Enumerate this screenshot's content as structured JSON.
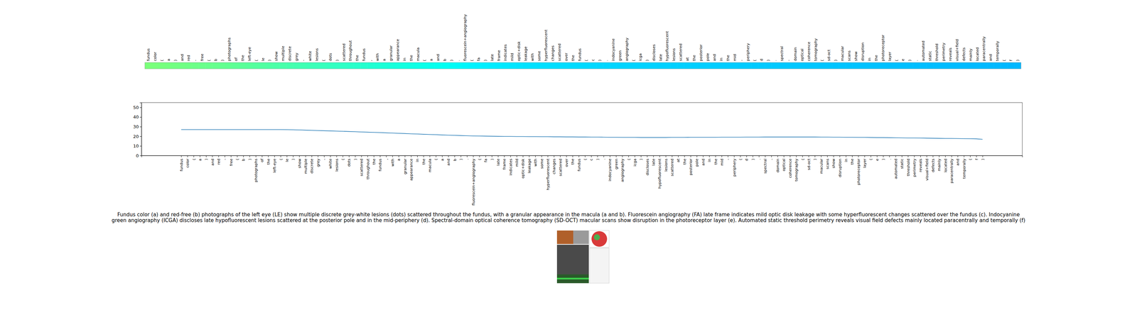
{
  "chart_data": [
    {
      "type": "heatmap",
      "categories": [
        "fundus",
        "color",
        "(",
        "a",
        ")",
        "and",
        "red",
        "-",
        "free",
        "(",
        "b",
        ")",
        "photographs",
        "of",
        "the",
        "left-eye",
        "(",
        "le",
        ")",
        "show",
        "multiple",
        "discrete",
        "grey",
        "-",
        "white",
        "lesions",
        "(",
        "dots",
        ")",
        "scattered",
        "throughout",
        "the",
        "fundus",
        ",",
        "with",
        "a",
        "granular",
        "appearance",
        "in",
        "the",
        "macula",
        "(",
        "a",
        "and",
        "b",
        ")",
        ".",
        "fluorescein+angiography",
        "(",
        "fa",
        ")",
        "late",
        "frame",
        "indicates",
        "mild",
        "optic+disk",
        "leakage",
        "with",
        "some",
        "hyperfluorescent",
        "changes",
        "scattered",
        "over",
        "the",
        "fundus",
        "(",
        "c",
        ")",
        ".",
        "indocyanine",
        "green",
        "angiography",
        "(",
        "icga",
        ")",
        "discloses",
        "late",
        "hypofluorescent",
        "lesions",
        "scattered",
        "at",
        "the",
        "posterior",
        "pole",
        "and",
        "in",
        "the",
        "mid",
        "-",
        "periphery",
        "(",
        "d",
        ")",
        ".",
        "spectral",
        "-",
        "domain",
        "optical",
        "coherence",
        "tomography",
        "(",
        "sd-oct",
        ")",
        "macular",
        "scans",
        "show",
        "disruption",
        "in",
        "the",
        "photoreceptor",
        "layer",
        "(",
        "e",
        ")",
        ".",
        "automated",
        "static",
        "threshold",
        "perimetry",
        "reveals",
        "visual+field",
        "defects",
        "mainly",
        "located",
        "paracentrally",
        "and",
        "temporally",
        "(",
        "f",
        ")"
      ],
      "colors": [
        "#7aff7a",
        "#78ff7c",
        "#76ff7e",
        "#74ff80",
        "#72ff82",
        "#70ff84",
        "#6eff86",
        "#6cff88",
        "#6aff8a",
        "#68ff8c",
        "#66ff8e",
        "#63ff90",
        "#60ff92",
        "#5dff95",
        "#5aff98",
        "#57ff9b",
        "#54ff9e",
        "#51ffa1",
        "#4effa4",
        "#4bffa7",
        "#48ffaa",
        "#45ffad",
        "#42ffb0",
        "#3fffb3",
        "#3cffb6",
        "#39ffb9",
        "#36ffbc",
        "#33ffbf",
        "#30ffc2",
        "#2dffc5",
        "#2affc8",
        "#27ffcb",
        "#24ffce",
        "#21ffd1",
        "#1effd4",
        "#1bffd7",
        "#18ffda",
        "#15ffdd",
        "#12ffe0",
        "#0fffe3",
        "#0cffe6",
        "#09ffe9",
        "#06ffec",
        "#03ffef",
        "#00fff2",
        "#00fcf5",
        "#00f9f8",
        "#00f6fb",
        "#00f3fe",
        "#00f0ff",
        "#00eeff",
        "#00ecff",
        "#00eaff",
        "#00e8ff",
        "#00e6ff",
        "#00e4ff",
        "#00e2ff",
        "#00e1ff",
        "#00e0ff",
        "#00dfff",
        "#00deff",
        "#00ddff",
        "#00dcff",
        "#00dbff",
        "#00daff",
        "#00d9ff",
        "#00d8ff",
        "#00d7ff",
        "#00d6ff",
        "#00d5ff",
        "#00d4ff",
        "#00d4ff",
        "#00d3ff",
        "#00d3ff",
        "#00d2ff",
        "#00d2ff",
        "#00d1ff",
        "#00d1ff",
        "#00d0ff",
        "#00d0ff",
        "#00cfff",
        "#00cfff",
        "#00ceff",
        "#00ceff",
        "#00cdff",
        "#00cdff",
        "#00ccff",
        "#00ccff",
        "#00cbff",
        "#00cbff",
        "#00caff",
        "#00caff",
        "#00c9ff",
        "#00c9ff",
        "#00c8ff",
        "#00c8ff",
        "#00c7ff",
        "#00c7ff",
        "#00c6ff",
        "#00c6ff",
        "#00c5ff",
        "#00c5ff",
        "#00c4ff",
        "#00c4ff",
        "#00c3ff",
        "#00c3ff",
        "#00c2ff",
        "#00c2ff",
        "#00c1ff",
        "#00c1ff",
        "#00c0ff",
        "#00c0ff",
        "#00bfff",
        "#00bfff",
        "#00beff",
        "#00beff",
        "#00bdff",
        "#00bdff",
        "#00bcff",
        "#00bcff",
        "#00bbff",
        "#00bbff",
        "#00baff",
        "#00baff",
        "#00b9ff",
        "#00b9ff",
        "#00b8ff",
        "#00b8ff",
        "#00b7ff",
        "#00b7ff"
      ]
    },
    {
      "type": "line",
      "categories": [
        "fundus",
        "color",
        "(",
        "a",
        ")",
        "and",
        "red",
        "-",
        "free",
        "(",
        "b",
        ")",
        "photographs",
        "of",
        "the",
        "left-eye",
        "(",
        "le",
        ")",
        "show",
        "multiple",
        "discrete",
        "grey",
        "-",
        "white",
        "lesions",
        "(",
        "dots",
        ")",
        "scattered",
        "throughout",
        "the",
        "fundus",
        ",",
        "with",
        "a",
        "granular",
        "appearance",
        "in",
        "the",
        "macula",
        "(",
        "a",
        "and",
        "b",
        ")",
        ".",
        "fluorescein+angiography",
        "(",
        "fa",
        ")",
        "late",
        "frame",
        "indicates",
        "mild",
        "optic+disk",
        "leakage",
        "with",
        "some",
        "hyperfluorescent",
        "changes",
        "scattered",
        "over",
        "the",
        "fundus",
        "(",
        "c",
        ")",
        ".",
        "indocyanine",
        "green",
        "angiography",
        "(",
        "icga",
        ")",
        "discloses",
        "late",
        "hypofluorescent",
        "lesions",
        "scattered",
        "at",
        "the",
        "posterior",
        "pole",
        "and",
        "in",
        "the",
        "mid",
        "-",
        "periphery",
        "(",
        "d",
        ")",
        ".",
        "spectral",
        "-",
        "domain",
        "optical",
        "coherence",
        "tomography",
        "(",
        "sd-oct",
        ")",
        "macular",
        "scans",
        "show",
        "disruption",
        "in",
        "the",
        "photoreceptor",
        "layer",
        "(",
        "e",
        ")",
        ".",
        "automated",
        "static",
        "threshold",
        "perimetry",
        "reveals",
        "visual+field",
        "defects",
        "mainly",
        "located",
        "paracentrally",
        "and",
        "temporally",
        "(",
        "f",
        ")"
      ],
      "values": [
        27,
        27,
        27,
        27,
        27,
        27,
        27,
        27,
        27,
        27,
        27,
        27,
        27,
        27,
        27,
        27,
        27,
        26.9,
        26.8,
        26.6,
        26.4,
        26.2,
        26,
        25.8,
        25.6,
        25.4,
        25.2,
        25,
        24.8,
        24.5,
        24.3,
        24.1,
        23.9,
        23.6,
        23.4,
        23.1,
        22.9,
        22.6,
        22.4,
        22.1,
        21.9,
        21.7,
        21.4,
        21.2,
        21,
        20.8,
        20.6,
        20.4,
        20.3,
        20.2,
        20.1,
        20,
        19.9,
        19.9,
        19.8,
        19.8,
        19.7,
        19.7,
        19.6,
        19.6,
        19.5,
        19.5,
        19.4,
        19.4,
        19.3,
        19.3,
        19.2,
        19.2,
        19.1,
        19,
        19,
        18.9,
        18.9,
        18.9,
        18.8,
        18.8,
        18.8,
        18.8,
        18.8,
        18.9,
        18.9,
        18.9,
        19,
        19,
        19,
        19,
        19,
        19.1,
        19.1,
        19.1,
        19.1,
        19.2,
        19.2,
        19.2,
        19.3,
        19.3,
        19.3,
        19.3,
        19.3,
        19.3,
        19.3,
        19.3,
        19.3,
        19.2,
        19.2,
        19.1,
        19.1,
        19,
        19,
        18.9,
        18.9,
        18.8,
        18.7,
        18.7,
        18.6,
        18.5,
        18.4,
        18.3,
        18.3,
        18.2,
        18.1,
        18,
        17.9,
        17.8,
        17.8,
        17.7,
        17.6,
        17.5,
        17.4,
        16.9
      ],
      "color": "#1f77b4",
      "ylim": [
        0,
        55
      ],
      "yticks": [
        0,
        10,
        20,
        30,
        40,
        50
      ]
    }
  ],
  "caption": "Fundus color (a) and red-free (b) photographs of the left eye (LE) show multiple discrete grey-white lesions (dots) scattered throughout the fundus, with a granular appearance in the macula (a and b). Fluorescein angiography (FA) late frame indicates mild optic disk leakage with some hyperfluorescent changes scattered over the fundus (c). Indocyanine green angiography (ICGA) discloses late hypofluorescent lesions scattered at the posterior pole and in the mid-periphery (d). Spectral-domain optical coherence tomography (SD-OCT) macular scans show disruption in the photoreceptor layer (e). Automated static threshold perimetry reveals visual field defects mainly located paracentrally and temporally (f)"
}
